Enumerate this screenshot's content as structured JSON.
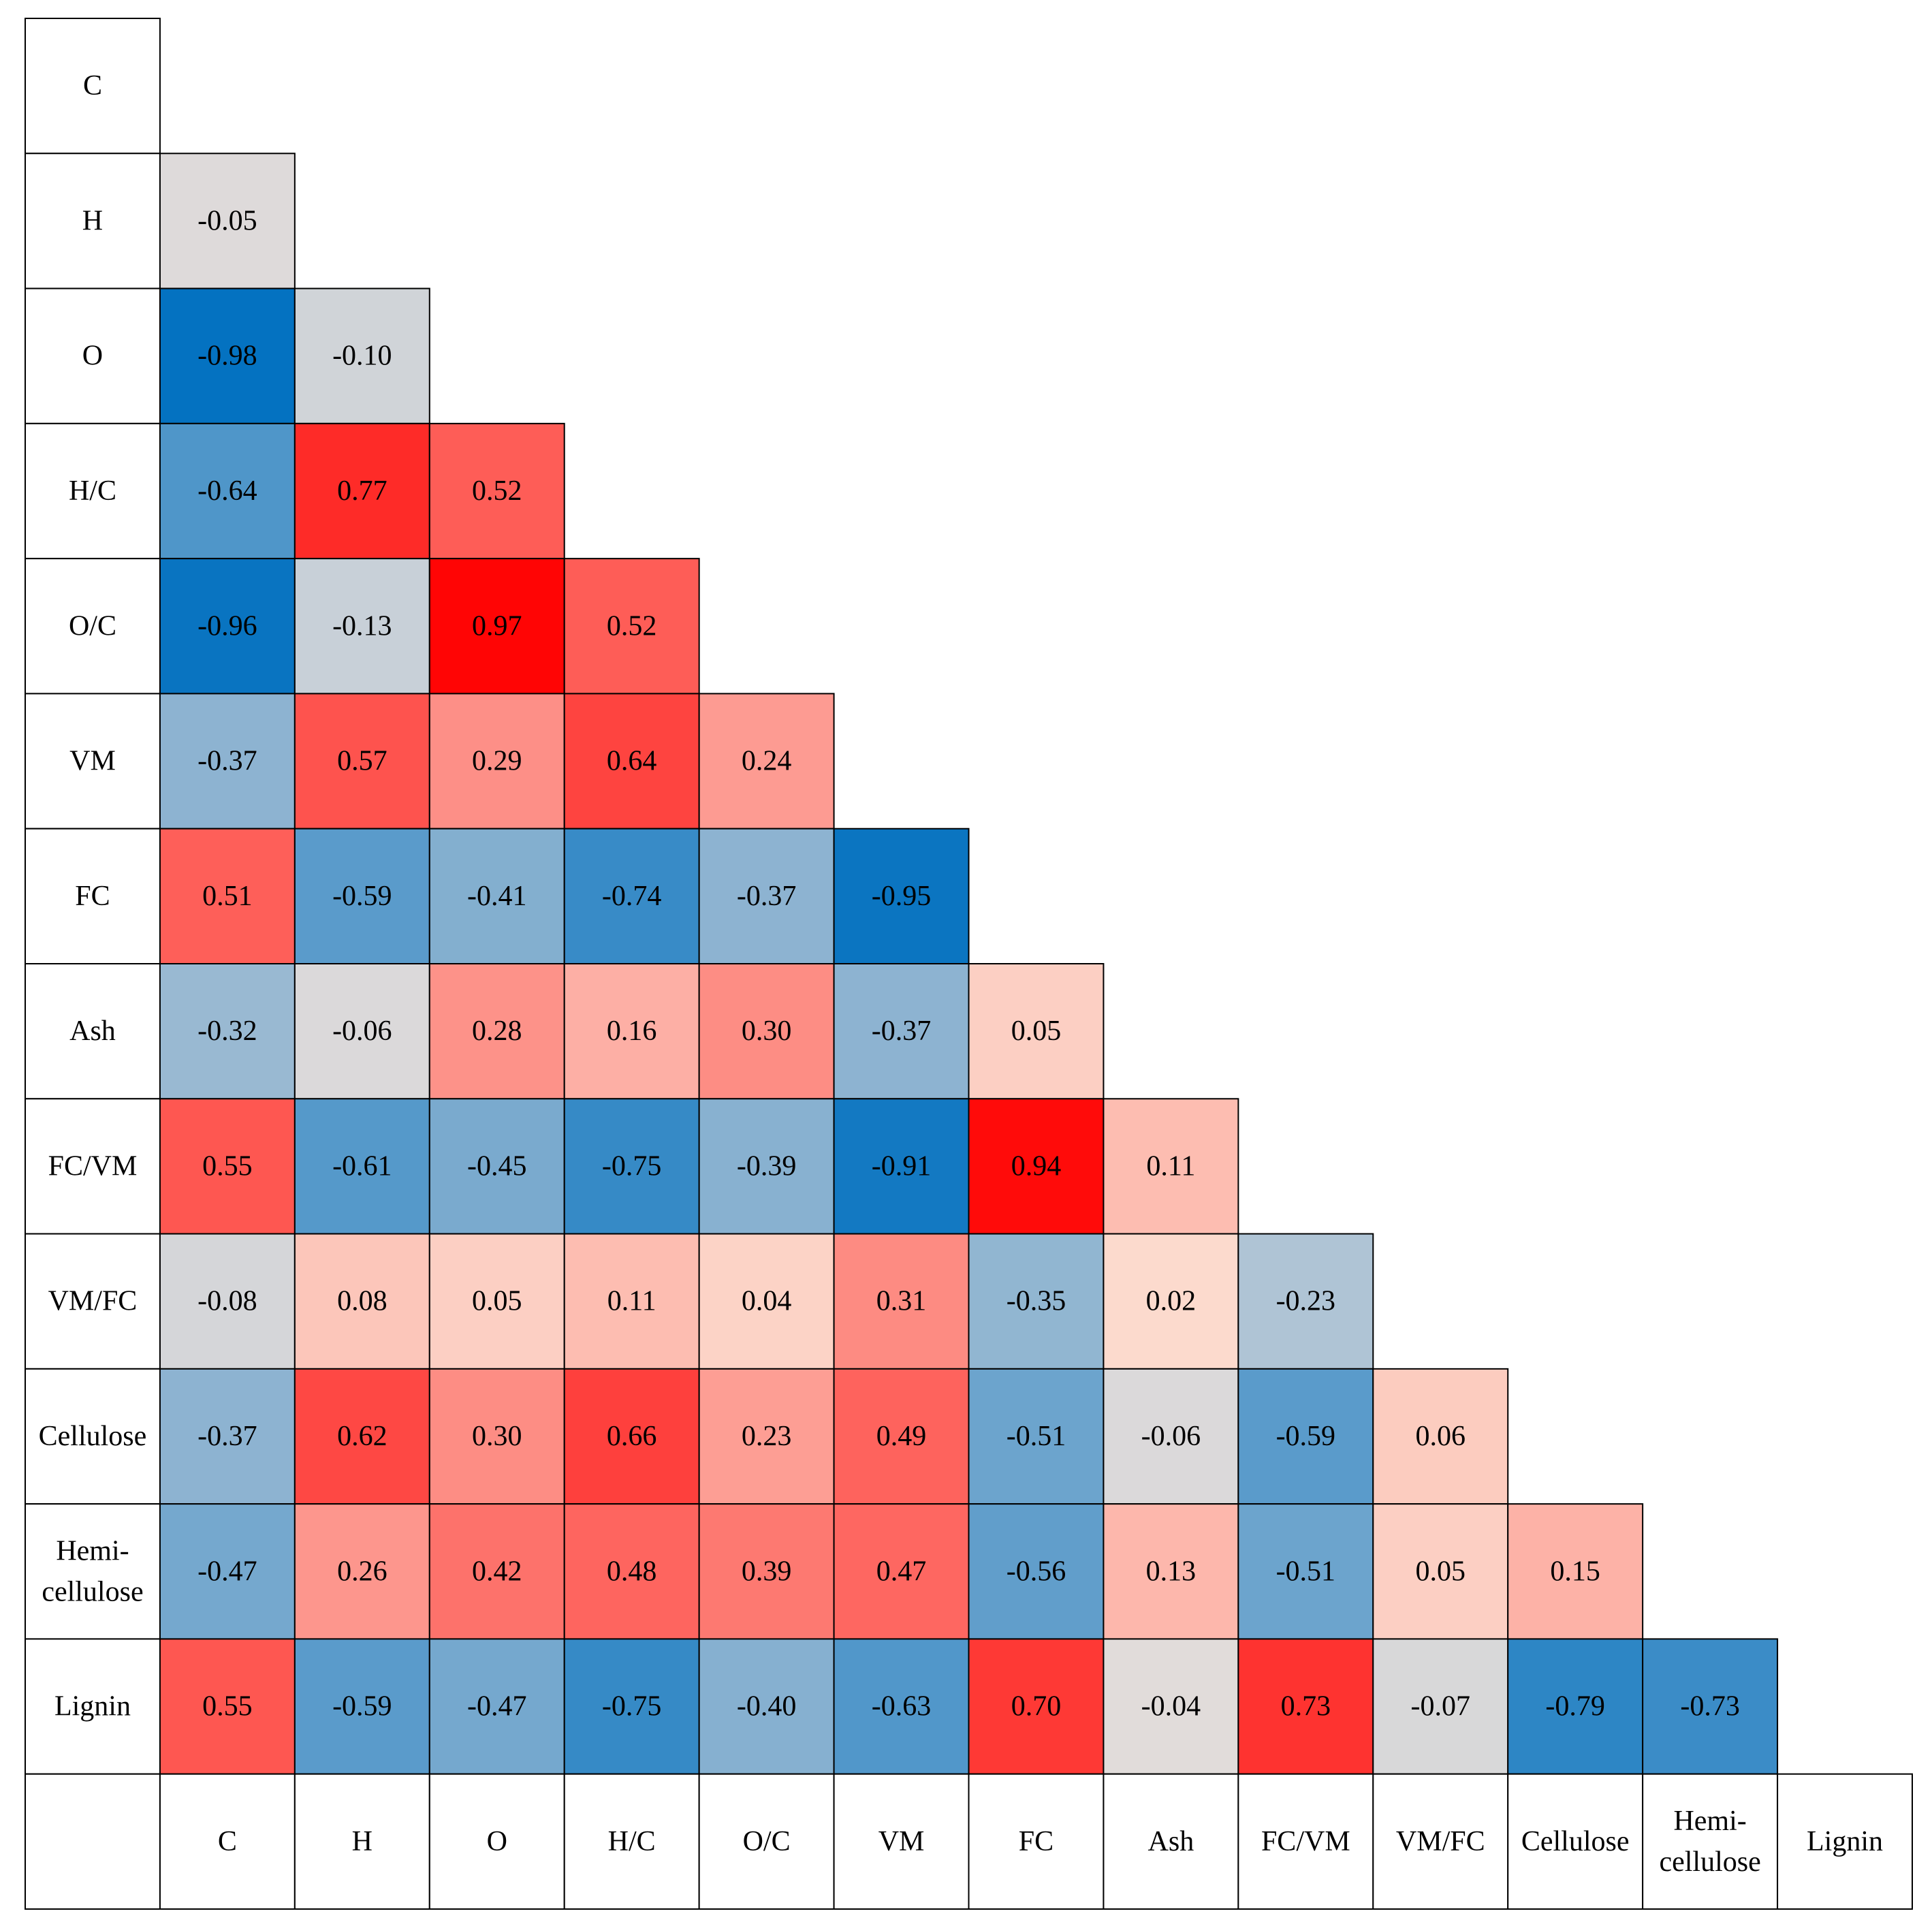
{
  "chart_data": {
    "type": "heatmap",
    "title": "",
    "variables": [
      "C",
      "H",
      "O",
      "H/C",
      "O/C",
      "VM",
      "FC",
      "Ash",
      "FC/VM",
      "VM/FC",
      "Cellulose",
      "Hemi-cellulose",
      "Lignin"
    ],
    "row_labels": [
      [
        "C"
      ],
      [
        "H"
      ],
      [
        "O"
      ],
      [
        "H/C"
      ],
      [
        "O/C"
      ],
      [
        "VM"
      ],
      [
        "FC"
      ],
      [
        "Ash"
      ],
      [
        "FC/VM"
      ],
      [
        "VM/FC"
      ],
      [
        "Cellulose"
      ],
      [
        "Hemi-",
        "cellulose"
      ],
      [
        "Lignin"
      ]
    ],
    "col_labels": [
      [
        "C"
      ],
      [
        "H"
      ],
      [
        "O"
      ],
      [
        "H/C"
      ],
      [
        "O/C"
      ],
      [
        "VM"
      ],
      [
        "FC"
      ],
      [
        "Ash"
      ],
      [
        "FC/VM"
      ],
      [
        "VM/FC"
      ],
      [
        "Cellulose"
      ],
      [
        "Hemi-",
        "cellulose"
      ],
      [
        "Lignin"
      ]
    ],
    "values": [
      [],
      [
        "-0.05"
      ],
      [
        "-0.98",
        "-0.10"
      ],
      [
        "-0.64",
        "0.77",
        "0.52"
      ],
      [
        "-0.96",
        "-0.13",
        "0.97",
        "0.52"
      ],
      [
        "-0.37",
        "0.57",
        "0.29",
        "0.64",
        "0.24"
      ],
      [
        "0.51",
        "-0.59",
        "-0.41",
        "-0.74",
        "-0.37",
        "-0.95"
      ],
      [
        "-0.32",
        "-0.06",
        "0.28",
        "0.16",
        "0.30",
        "-0.37",
        "0.05"
      ],
      [
        "0.55",
        "-0.61",
        "-0.45",
        "-0.75",
        "-0.39",
        "-0.91",
        "0.94",
        "0.11"
      ],
      [
        "-0.08",
        "0.08",
        "0.05",
        "0.11",
        "0.04",
        "0.31",
        "-0.35",
        "0.02",
        "-0.23"
      ],
      [
        "-0.37",
        "0.62",
        "0.30",
        "0.66",
        "0.23",
        "0.49",
        "-0.51",
        "-0.06",
        "-0.59",
        "0.06"
      ],
      [
        "-0.47",
        "0.26",
        "0.42",
        "0.48",
        "0.39",
        "0.47",
        "-0.56",
        "0.13",
        "-0.51",
        "0.05",
        "0.15"
      ],
      [
        "0.55",
        "-0.59",
        "-0.47",
        "-0.75",
        "-0.40",
        "-0.63",
        "0.70",
        "-0.04",
        "0.73",
        "-0.07",
        "-0.79",
        "-0.73"
      ]
    ],
    "color_scale": {
      "min": -1,
      "mid": 0,
      "max": 1,
      "low_color": "#0070c0",
      "mid_color": "#d9d9d9",
      "high_color": "#ff0000"
    },
    "legend": "none",
    "grid": true
  }
}
